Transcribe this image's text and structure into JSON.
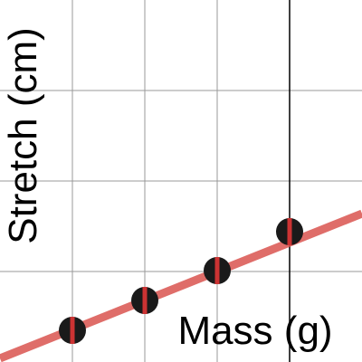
{
  "chart_data": {
    "type": "scatter",
    "title": "",
    "xlabel": "Mass (g)",
    "ylabel": "Stretch (cm)",
    "xlim": [
      0,
      5
    ],
    "ylim": [
      0,
      4
    ],
    "grid": true,
    "x_gridlines": [
      1,
      2,
      3,
      4
    ],
    "y_gridlines": [
      1,
      2,
      3
    ],
    "highlight_x": 4,
    "points": [
      {
        "x": 1,
        "y": 0.35,
        "err": 0.15
      },
      {
        "x": 2,
        "y": 0.68,
        "err": 0.15
      },
      {
        "x": 3,
        "y": 1.01,
        "err": 0.15
      },
      {
        "x": 4,
        "y": 1.44,
        "err": 0.15
      }
    ],
    "fit_line": {
      "x0": 0,
      "y0": 0.04,
      "x1": 5,
      "y1": 1.64
    },
    "colors": {
      "grid": "#999999",
      "highlight": "#000000",
      "point": "#1a1a1a",
      "error_bar": "#cc3333",
      "fit_line": "#d9534f"
    }
  }
}
